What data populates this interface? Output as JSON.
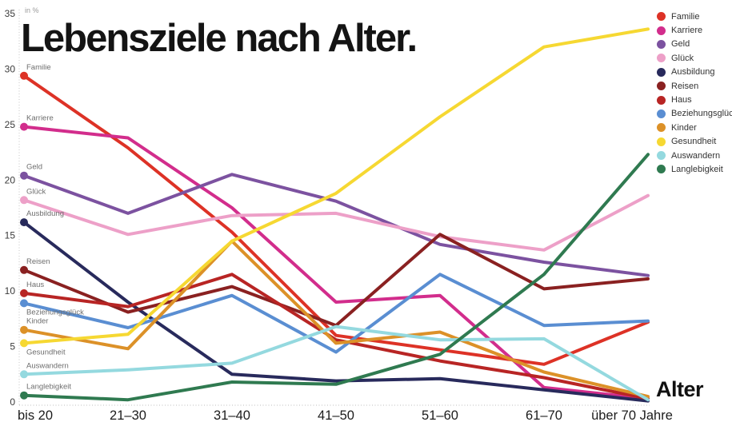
{
  "chart_data": {
    "type": "line",
    "title": "Lebensziele nach Alter.",
    "ylabel": "in %",
    "xlabel": "Alter",
    "ylim": [
      0,
      35
    ],
    "yticks": [
      0,
      5,
      10,
      15,
      20,
      25,
      30,
      35
    ],
    "grid": "dotted y-axis line and dotted zero baseline only",
    "legend_position": "top-right",
    "categories": [
      "bis 20",
      "21–30",
      "31–40",
      "41–50",
      "51–60",
      "61–70",
      "über 70 Jahre"
    ],
    "series": [
      {
        "name": "Familie",
        "color": "#dd3226",
        "label_position": "above",
        "values": [
          29.4,
          22.9,
          15.3,
          6.0,
          4.7,
          3.4,
          7.2
        ]
      },
      {
        "name": "Karriere",
        "color": "#d22d8c",
        "label_position": "above",
        "values": [
          24.8,
          23.8,
          17.5,
          9.0,
          9.6,
          1.3,
          0.3
        ]
      },
      {
        "name": "Geld",
        "color": "#7c52a0",
        "label_position": "above",
        "values": [
          20.4,
          17.0,
          20.5,
          18.1,
          14.2,
          12.6,
          11.4
        ]
      },
      {
        "name": "Glück",
        "color": "#eda0c8",
        "label_position": "above",
        "values": [
          18.2,
          15.1,
          16.8,
          17.0,
          14.9,
          13.7,
          18.6
        ]
      },
      {
        "name": "Ausbildung",
        "color": "#282a5c",
        "label_position": "above",
        "values": [
          16.2,
          9.0,
          2.5,
          1.9,
          2.1,
          1.1,
          0.1
        ]
      },
      {
        "name": "Reisen",
        "color": "#8a2121",
        "label_position": "above",
        "values": [
          11.9,
          8.1,
          10.4,
          6.9,
          15.1,
          10.2,
          11.1
        ]
      },
      {
        "name": "Haus",
        "color": "#b82524",
        "label_position": "above",
        "values": [
          9.8,
          8.6,
          11.5,
          5.6,
          3.7,
          2.2,
          0.3
        ]
      },
      {
        "name": "Beziehungsglück",
        "color": "#5a8ed2",
        "label_position": "below",
        "values": [
          8.9,
          6.7,
          9.6,
          4.5,
          11.5,
          6.9,
          7.3
        ]
      },
      {
        "name": "Kinder",
        "color": "#dc9128",
        "label_position": "above",
        "values": [
          6.5,
          4.8,
          14.5,
          5.3,
          6.3,
          2.7,
          0.5
        ]
      },
      {
        "name": "Gesundheit",
        "color": "#f6d832",
        "label_position": "below",
        "values": [
          5.3,
          6.1,
          14.5,
          18.8,
          25.7,
          32.0,
          33.6
        ]
      },
      {
        "name": "Auswandern",
        "color": "#94d9df",
        "label_position": "above",
        "values": [
          2.5,
          2.9,
          3.5,
          6.8,
          5.6,
          5.7,
          0.2
        ]
      },
      {
        "name": "Langlebigkeit",
        "color": "#2f7a50",
        "label_position": "above",
        "values": [
          0.6,
          0.2,
          1.8,
          1.6,
          4.3,
          11.5,
          22.3
        ]
      }
    ]
  }
}
